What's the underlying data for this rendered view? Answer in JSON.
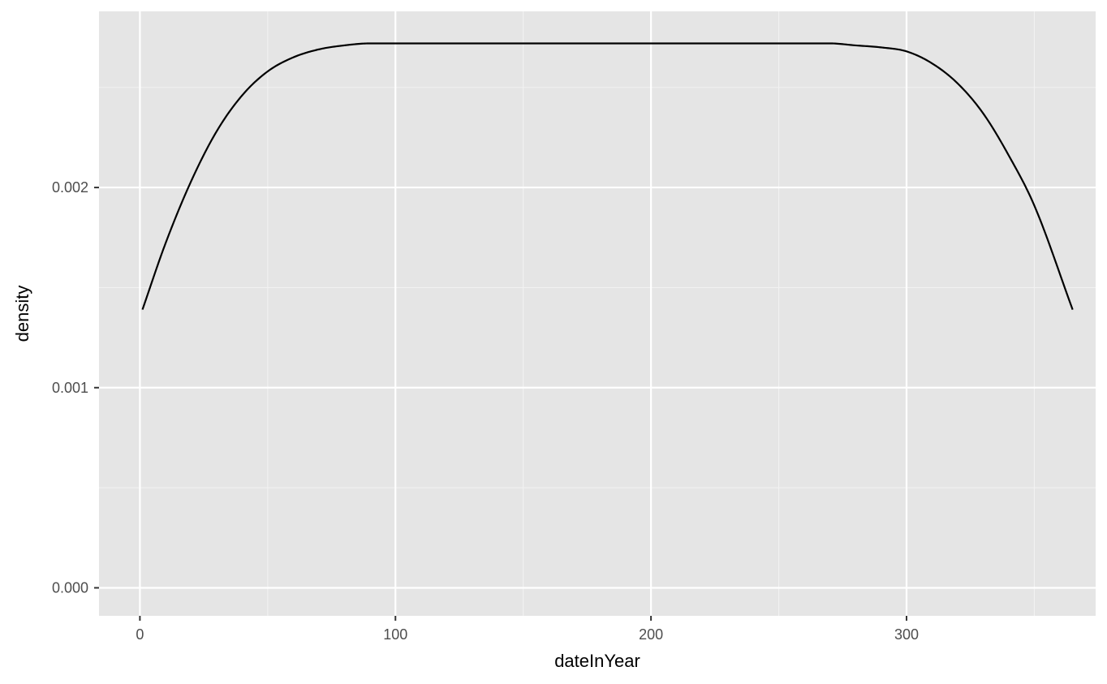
{
  "chart_data": {
    "type": "line",
    "title": "",
    "xlabel": "dateInYear",
    "ylabel": "density",
    "xlim": [
      -16,
      374
    ],
    "ylim": [
      -0.00014,
      0.00288
    ],
    "x_ticks": [
      0,
      100,
      200,
      300
    ],
    "x_tick_labels": [
      "0",
      "100",
      "200",
      "300"
    ],
    "y_ticks": [
      0.0,
      0.001,
      0.002
    ],
    "y_tick_labels": [
      "0.000",
      "0.001",
      "0.002"
    ],
    "x_minor_breaks": [
      50,
      150,
      250,
      350
    ],
    "y_minor_breaks": [
      0.0005,
      0.0015,
      0.0025
    ],
    "grid": true,
    "legend": "none",
    "series": [
      {
        "x": [
          1,
          10,
          20,
          30,
          40,
          50,
          60,
          70,
          80,
          90,
          100,
          150,
          200,
          250,
          270,
          280,
          290,
          300,
          310,
          320,
          330,
          340,
          350,
          365
        ],
        "values": [
          0.00139,
          0.00172,
          0.00203,
          0.00228,
          0.00246,
          0.00258,
          0.00265,
          0.00269,
          0.00271,
          0.00272,
          0.00272,
          0.00272,
          0.00272,
          0.00272,
          0.00272,
          0.00271,
          0.0027,
          0.00268,
          0.00262,
          0.00252,
          0.00237,
          0.00216,
          0.00191,
          0.00139
        ]
      }
    ],
    "colors": {
      "panel_background": "#e5e5e5",
      "grid_major": "#ffffff",
      "grid_minor": "#f2f2f2",
      "line": "#000000",
      "tick": "#333333",
      "tick_label": "#4d4d4d"
    }
  }
}
